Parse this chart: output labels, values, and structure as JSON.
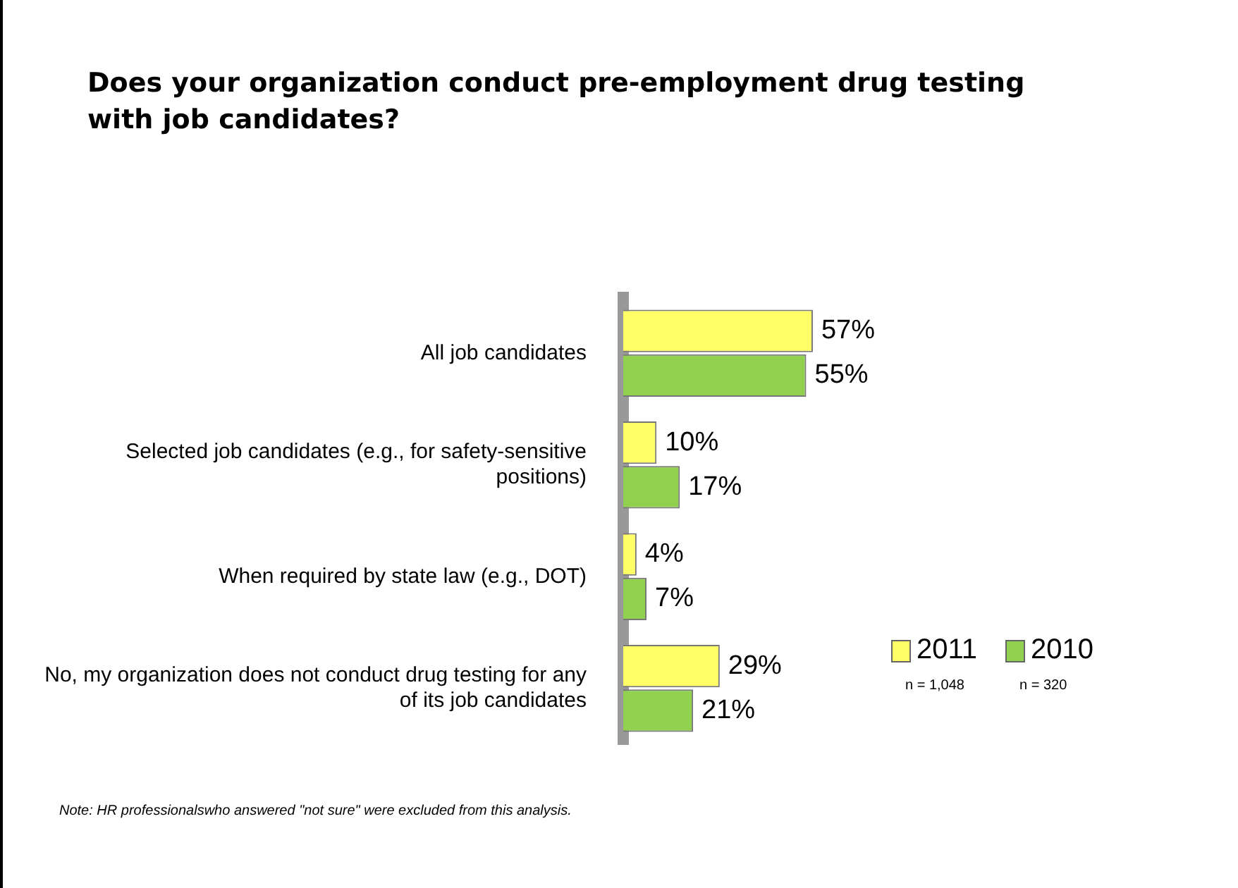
{
  "chart_data": {
    "type": "bar",
    "orientation": "horizontal",
    "title": "Does your organization conduct pre-employment drug testing with job candidates?",
    "categories": [
      "All job candidates",
      "Selected job candidates (e.g., for safety-sensitive positions)",
      "When required by state law (e.g., DOT)",
      "No, my organization does not conduct drug testing for any of its job candidates"
    ],
    "series": [
      {
        "name": "2011",
        "color": "#ffff66",
        "values": [
          57,
          10,
          4,
          29
        ],
        "value_labels": [
          "57%",
          "10%",
          "4%",
          "29%"
        ]
      },
      {
        "name": "2010",
        "color": "#92d050",
        "values": [
          55,
          17,
          7,
          21
        ],
        "value_labels": [
          "55%",
          "17%",
          "7%",
          "21%"
        ]
      }
    ],
    "legend": "bottom right",
    "annotations": [
      "n = 1,048",
      "n = 320",
      "Note: HR professionalswho answered \"not sure\" were excluded from this analysis."
    ]
  }
}
